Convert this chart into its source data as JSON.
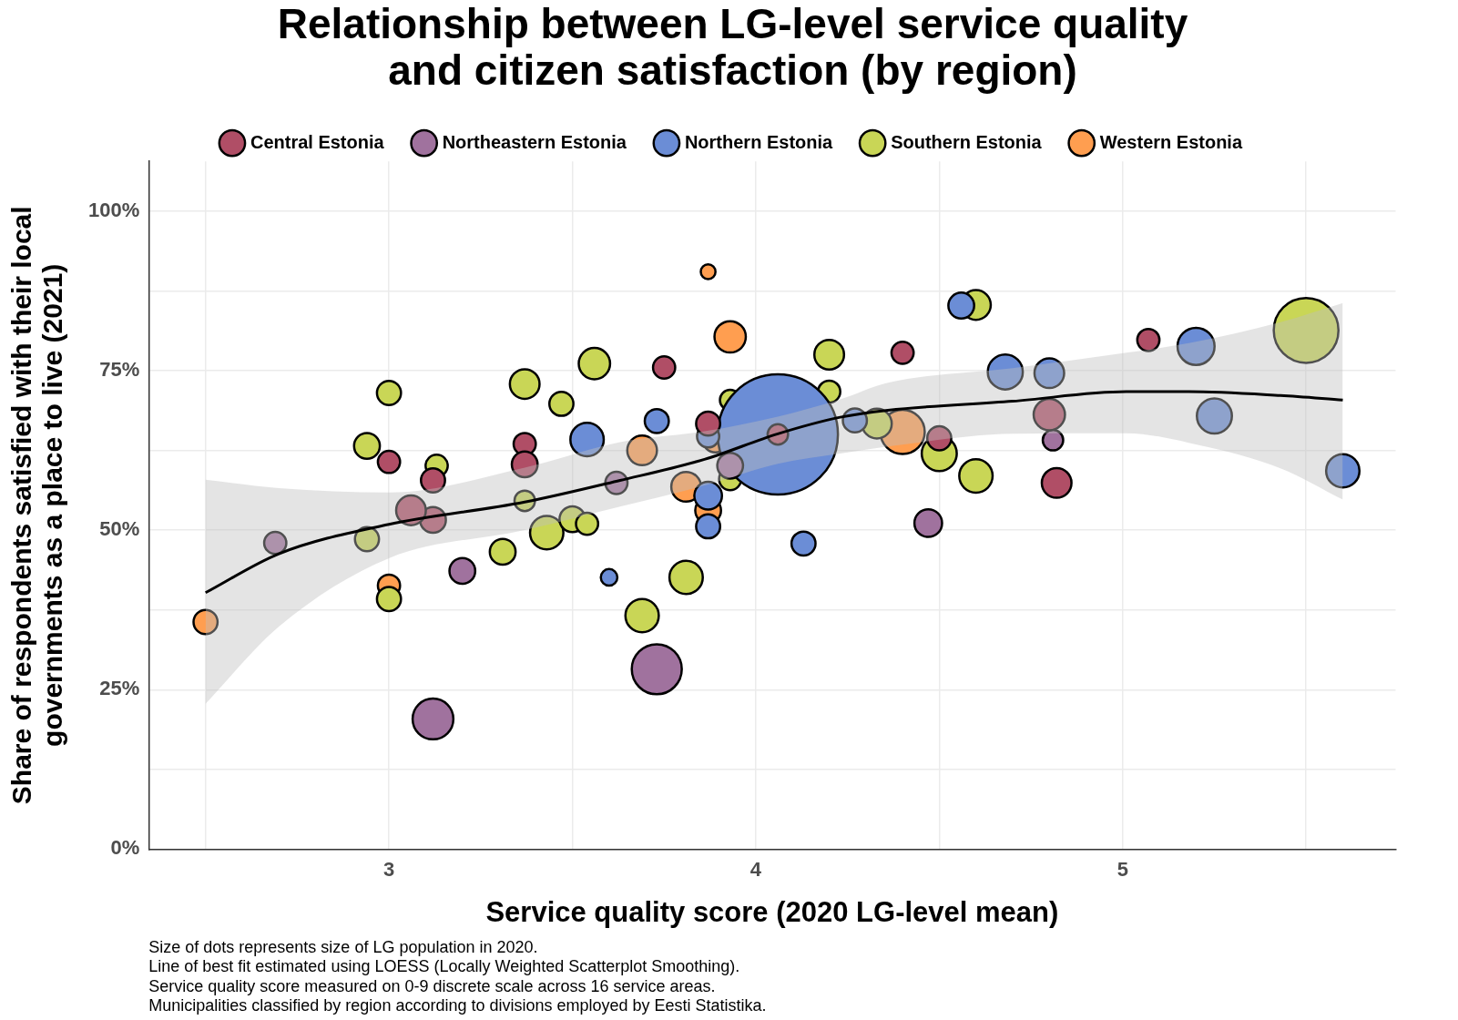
{
  "chart_data": {
    "type": "bubble",
    "title": "Relationship between LG-level service quality and citizen satisfaction (by region)",
    "xlabel": "Service quality score (2020 LG-level mean)",
    "ylabel": "Share of respondents satisfied with their local governments as a place to live (2021)",
    "xlim": [
      2.345,
      5.744
    ],
    "xticks": [
      {
        "value": 2.5,
        "label": null
      },
      3,
      {
        "value": 3.5,
        "label": null
      },
      4,
      {
        "value": 4.5,
        "label": null
      },
      5,
      {
        "value": 5.5,
        "label": null
      }
    ],
    "ylim": [
      0,
      107.8
    ],
    "yticks": [
      {
        "value": 0,
        "label": "0%"
      },
      {
        "value": 12.5,
        "label": null
      },
      {
        "value": 25,
        "label": "25%"
      },
      {
        "value": 37.5,
        "label": null
      },
      {
        "value": 50,
        "label": "50%"
      },
      {
        "value": 62.5,
        "label": null
      },
      {
        "value": 75,
        "label": "75%"
      },
      {
        "value": 87.5,
        "label": null
      },
      {
        "value": 100,
        "label": "100%"
      }
    ],
    "grid": true,
    "legend": "top",
    "marker": "circle",
    "annotations": [
      "Size of dots represents size of LG population in 2020.",
      "Line of best fit estimated using LOESS (Locally Weighted Scatterplot Smoothing).",
      "Service quality score measured on 0-9 discrete scale across 16 service areas.",
      "Municipalities classified by region according to divisions employed by Eesti Statistika."
    ],
    "series": [
      {
        "name": "Central Estonia",
        "color": "#b04e66",
        "x": [
          3.0,
          3.37,
          3.37,
          3.12,
          3.12,
          3.06,
          3.75,
          3.87,
          4.06,
          4.4,
          5.07,
          4.8,
          4.82,
          4.5
        ],
        "values": [
          60.7,
          63.5,
          60.3,
          57.8,
          51.6,
          53.1,
          75.5,
          66.7,
          65.0,
          77.8,
          79.8,
          68.1,
          57.4,
          64.4
        ],
        "sizes": [
          0.034,
          0.034,
          0.046,
          0.04,
          0.046,
          0.061,
          0.034,
          0.04,
          0.029,
          0.034,
          0.034,
          0.068,
          0.061,
          0.04
        ]
      },
      {
        "name": "Northeastern Estonia",
        "color": "#a0729e",
        "x": [
          2.69,
          3.2,
          3.12,
          3.73,
          3.62,
          4.47,
          4.81,
          3.93
        ],
        "values": [
          48.0,
          43.6,
          20.4,
          28.2,
          57.4,
          51.1,
          64.1,
          60.1
        ],
        "sizes": [
          0.034,
          0.046,
          0.115,
          0.173,
          0.034,
          0.053,
          0.029,
          0.046
        ]
      },
      {
        "name": "Northern Estonia",
        "color": "#6b8dd6",
        "x": [
          4.06,
          3.54,
          3.73,
          3.87,
          3.87,
          3.87,
          3.6,
          4.13,
          4.27,
          4.56,
          4.68,
          4.8,
          5.2,
          5.25,
          5.6
        ],
        "values": [
          65.0,
          64.2,
          67.1,
          64.7,
          55.4,
          50.6,
          42.6,
          47.9,
          67.2,
          85.2,
          74.8,
          74.6,
          78.8,
          67.9,
          59.3
        ],
        "sizes": [
          1,
          0.077,
          0.04,
          0.034,
          0.053,
          0.04,
          0.019,
          0.04,
          0.04,
          0.046,
          0.085,
          0.061,
          0.095,
          0.085,
          0.077
        ]
      },
      {
        "name": "Southern Estonia",
        "color": "#c9d656",
        "x": [
          2.94,
          3.0,
          3.13,
          2.94,
          3.0,
          3.37,
          3.47,
          3.37,
          3.31,
          3.43,
          3.5,
          3.54,
          3.56,
          3.69,
          3.81,
          3.93,
          3.93,
          4.2,
          4.2,
          4.33,
          4.5,
          4.6,
          4.6,
          5.5
        ],
        "values": [
          63.2,
          71.5,
          60.1,
          48.6,
          39.2,
          72.9,
          69.8,
          54.6,
          46.6,
          49.6,
          51.7,
          51.0,
          76.1,
          36.6,
          42.6,
          70.4,
          58.0,
          77.5,
          71.7,
          66.7,
          62.0,
          85.3,
          58.5,
          81.3
        ],
        "sizes": [
          0.046,
          0.04,
          0.034,
          0.04,
          0.04,
          0.061,
          0.04,
          0.029,
          0.046,
          0.077,
          0.046,
          0.034,
          0.068,
          0.077,
          0.077,
          0.029,
          0.034,
          0.061,
          0.034,
          0.061,
          0.085,
          0.061,
          0.077,
          0.29
        ]
      },
      {
        "name": "Western Estonia",
        "color": "#ff9e50",
        "x": [
          2.5,
          3.0,
          3.69,
          3.87,
          3.93,
          3.81,
          3.87,
          3.89,
          4.4
        ],
        "values": [
          35.6,
          41.3,
          62.5,
          90.5,
          80.3,
          56.8,
          53.1,
          64.2,
          65.4
        ],
        "sizes": [
          0.04,
          0.034,
          0.061,
          0.015,
          0.068,
          0.061,
          0.046,
          0.046,
          0.136
        ]
      },
      {
        "type": "line",
        "marker": "none",
        "color": "#000000",
        "x": [
          2.5,
          2.7,
          3.0,
          3.37,
          3.63,
          3.86,
          4.06,
          4.23,
          4.36,
          4.7,
          5.01,
          5.18,
          5.43,
          5.6
        ],
        "values": [
          40.2,
          46.3,
          50.9,
          54.4,
          57.8,
          61.1,
          65.1,
          67.7,
          68.8,
          70.2,
          71.7,
          71.7,
          71.1,
          70.4
        ],
        "lower": [
          22.8,
          34.9,
          45.6,
          50.0,
          53.7,
          57.0,
          60.4,
          62.0,
          63.1,
          65.1,
          65.2,
          63.7,
          59.7,
          54.8
        ],
        "upper": [
          57.9,
          56.6,
          55.9,
          59.8,
          63.8,
          65.5,
          67.8,
          70.5,
          73.1,
          75.4,
          77.8,
          79.3,
          82.6,
          85.6
        ]
      }
    ]
  }
}
